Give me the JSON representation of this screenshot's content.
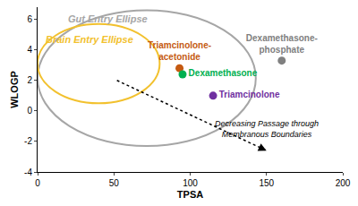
{
  "chart_data": {
    "type": "scatter",
    "x_label": "TPSA",
    "y_label": "WLOGP",
    "xlim": [
      0,
      200
    ],
    "xticks": [
      0,
      50,
      100,
      150,
      200
    ],
    "ylim": [
      -4,
      6.8
    ],
    "yticks": [
      -4,
      -2,
      0,
      2,
      4,
      6
    ],
    "grid": false,
    "series": [
      {
        "name": "Triamcinolone-acetonide",
        "color": "#c55a11",
        "x": [
          93
        ],
        "y": [
          2.8
        ]
      },
      {
        "name": "Dexamethasone",
        "color": "#00b050",
        "x": [
          95
        ],
        "y": [
          2.4
        ]
      },
      {
        "name": "Triamcinolone",
        "color": "#7030a0",
        "x": [
          115
        ],
        "y": [
          1.0
        ]
      },
      {
        "name": "Dexamethasone-phosphate",
        "color": "#808080",
        "x": [
          160
        ],
        "y": [
          3.3
        ]
      }
    ],
    "ellipses": [
      {
        "name": "Gut Entry Ellipse",
        "color": "#a6a6a6",
        "x_range": [
          0,
          143
        ],
        "y_range": [
          -2.3,
          6.6
        ],
        "label_at": [
          46,
          6.05
        ]
      },
      {
        "name": "Brain Entry Ellipse",
        "color": "#f2c12e",
        "x_range": [
          0,
          80
        ],
        "y_range": [
          0.5,
          5.7
        ],
        "label_at": [
          34,
          4.7
        ]
      }
    ],
    "arrow": {
      "text": "Decreasing Passage through\nMembranous Boundaries",
      "from": [
        52,
        2.0
      ],
      "to": [
        150,
        -2.6
      ],
      "text_at": [
        150,
        -1.2
      ]
    }
  }
}
